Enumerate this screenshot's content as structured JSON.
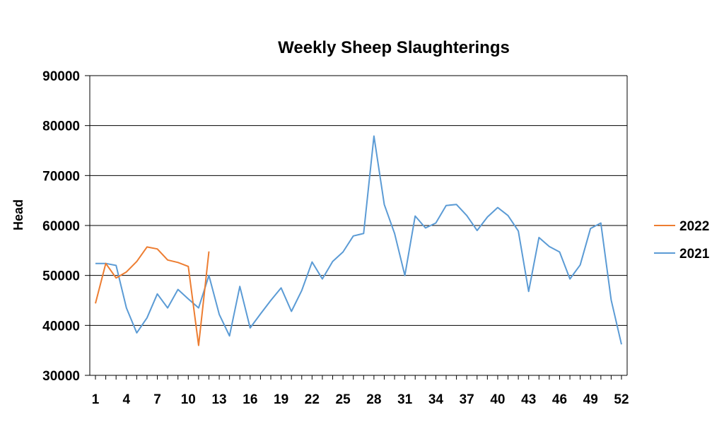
{
  "chart_data": {
    "type": "line",
    "title": "Weekly Sheep Slaughterings",
    "xlabel": "",
    "ylabel": "Head",
    "ylim": [
      30000,
      90000
    ],
    "yticks": [
      30000,
      40000,
      50000,
      60000,
      70000,
      80000,
      90000
    ],
    "xlim": [
      1,
      52
    ],
    "xtick_labels": [
      1,
      4,
      7,
      10,
      13,
      16,
      19,
      22,
      25,
      28,
      31,
      34,
      37,
      40,
      43,
      46,
      49,
      52
    ],
    "grid": "horizontal",
    "legend_position": "right",
    "series": [
      {
        "name": "2022",
        "color": "#ED7D31",
        "x": [
          1,
          2,
          3,
          4,
          5,
          6,
          7,
          8,
          9,
          10,
          11,
          12
        ],
        "values": [
          44400,
          52400,
          49500,
          50700,
          52800,
          55700,
          55300,
          53100,
          52600,
          51800,
          36000,
          54800
        ]
      },
      {
        "name": "2021",
        "color": "#5B9BD5",
        "x": [
          1,
          2,
          3,
          4,
          5,
          6,
          7,
          8,
          9,
          10,
          11,
          12,
          13,
          14,
          15,
          16,
          17,
          18,
          19,
          20,
          21,
          22,
          23,
          24,
          25,
          26,
          27,
          28,
          29,
          30,
          31,
          32,
          33,
          34,
          35,
          36,
          37,
          38,
          39,
          40,
          41,
          42,
          43,
          44,
          45,
          46,
          47,
          48,
          49,
          50,
          51,
          52
        ],
        "values": [
          52400,
          52400,
          52000,
          43500,
          38500,
          41500,
          46300,
          43500,
          47200,
          45300,
          43500,
          50000,
          42200,
          37900,
          47800,
          39500,
          42300,
          45000,
          47500,
          42800,
          47000,
          52700,
          49300,
          52800,
          54700,
          57900,
          58400,
          77900,
          64200,
          58400,
          50000,
          61900,
          59500,
          60500,
          64000,
          64200,
          62000,
          59000,
          61700,
          63600,
          62000,
          58900,
          46800,
          57600,
          55800,
          54700,
          49300,
          52100,
          59400,
          60500,
          45100,
          36200
        ]
      }
    ]
  }
}
